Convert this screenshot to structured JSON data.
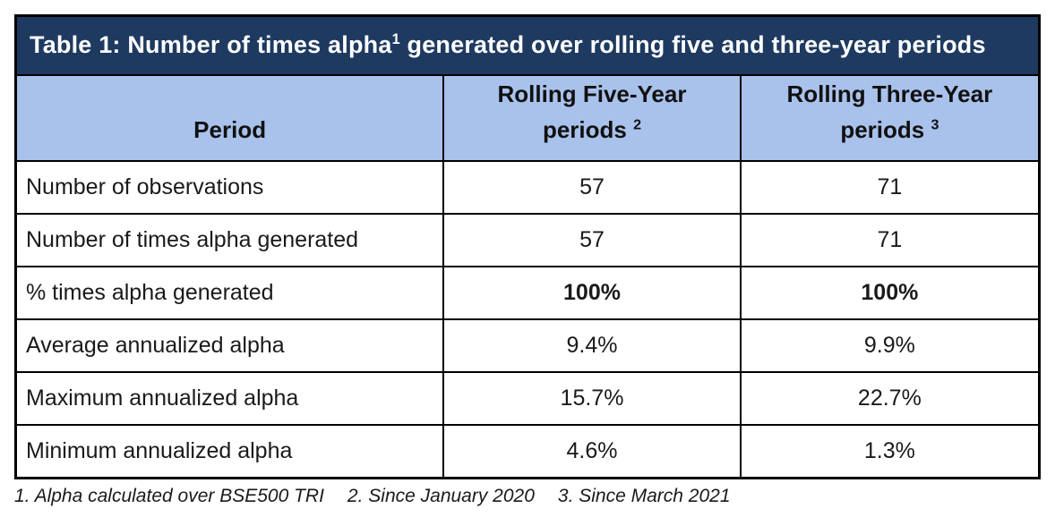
{
  "colors": {
    "title_bg": "#1e3a60",
    "title_text": "#ffffff",
    "header_bg": "#a9c2ec",
    "border": "#000000",
    "body_text": "#1a1a1a"
  },
  "table": {
    "title": {
      "prefix": "Table 1: Number of times alpha",
      "sup": "1",
      "suffix": " generated over rolling five and three-year periods"
    },
    "columns": {
      "period": {
        "label": "Period"
      },
      "five": {
        "line1": "Rolling Five-Year",
        "line2": "periods ",
        "sup": "2"
      },
      "three": {
        "line1": "Rolling Three-Year",
        "line2": "periods ",
        "sup": "3"
      }
    },
    "rows": [
      {
        "label": "Number of observations",
        "five": "57",
        "three": "71"
      },
      {
        "label": "Number of times alpha generated",
        "five": "57",
        "three": "71"
      },
      {
        "label": "% times alpha generated",
        "five": "100%",
        "three": "100%"
      },
      {
        "label": "Average annualized alpha",
        "five": "9.4%",
        "three": "9.9%"
      },
      {
        "label": "Maximum annualized alpha",
        "five": "15.7%",
        "three": "22.7%"
      },
      {
        "label": "Minimum annualized alpha",
        "five": "4.6%",
        "three": "1.3%"
      }
    ]
  },
  "footnotes": [
    "1. Alpha calculated over BSE500 TRI",
    "2. Since January 2020",
    "3. Since March 2021"
  ],
  "chart_data": {
    "type": "table",
    "title": "Table 1: Number of times alpha(1) generated over rolling five and three-year periods",
    "columns": [
      "Period",
      "Rolling Five-Year periods (2)",
      "Rolling Three-Year periods (3)"
    ],
    "rows": [
      [
        "Number of observations",
        "57",
        "71"
      ],
      [
        "Number of times alpha generated",
        "57",
        "71"
      ],
      [
        "% times alpha generated",
        "100%",
        "100%"
      ],
      [
        "Average annualized alpha",
        "9.4%",
        "9.9%"
      ],
      [
        "Maximum annualized alpha",
        "15.7%",
        "22.7%"
      ],
      [
        "Minimum annualized alpha",
        "4.6%",
        "1.3%"
      ]
    ],
    "footnotes": [
      "1. Alpha calculated over BSE500 TRI",
      "2. Since January 2020",
      "3. Since March 2021"
    ]
  }
}
